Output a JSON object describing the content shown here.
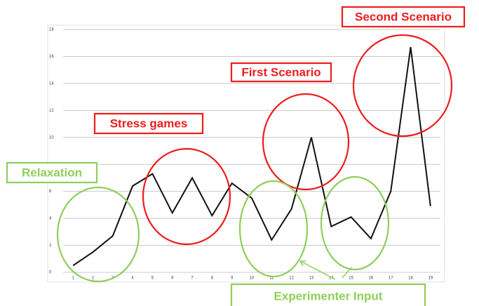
{
  "chart_data": {
    "type": "line",
    "categories": [
      "1",
      "2",
      "3",
      "4",
      "5",
      "6",
      "7",
      "8",
      "9",
      "10",
      "11",
      "12",
      "13",
      "14",
      "15",
      "16",
      "17",
      "18",
      "19"
    ],
    "series": [
      {
        "name": null,
        "color": "#111111",
        "values": [
          0.5,
          1.5,
          2.7,
          6.4,
          7.3,
          4.4,
          7.0,
          4.2,
          6.6,
          5.5,
          2.4,
          4.7,
          10.0,
          3.4,
          4.1,
          2.5,
          6.0,
          16.7,
          4.9
        ]
      }
    ],
    "ylim": [
      0,
      18
    ],
    "yticks": [
      0,
      2,
      4,
      6,
      8,
      10,
      12,
      14,
      16,
      18
    ],
    "grid": true,
    "annotations": [
      "Second Scenario",
      "First Scenario",
      "Stress games",
      "Relaxation",
      "Experimenter Input"
    ]
  }
}
